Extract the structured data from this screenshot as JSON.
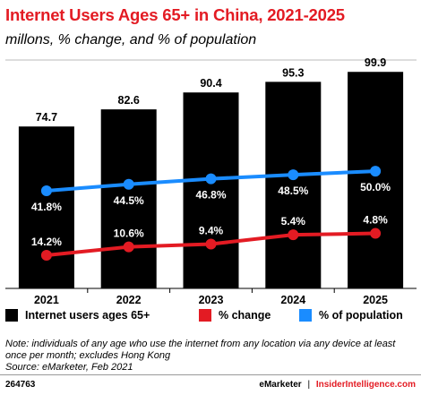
{
  "header": {
    "title": "Internet Users Ages 65+ in China, 2021-2025",
    "subtitle": "millons, % change, and % of population"
  },
  "legend": {
    "items": [
      {
        "label": "Internet users ages 65+",
        "color": "#000000"
      },
      {
        "label": "% change",
        "color": "#e31b23"
      },
      {
        "label": "% of population",
        "color": "#1a8cff"
      }
    ]
  },
  "note": "Note: individuals of any age who use the internet from any location via any device at least once per month; excludes Hong Kong",
  "source": "Source: eMarketer, Feb 2021",
  "footer": {
    "id": "264763",
    "brand1": "eMarketer",
    "separator": "|",
    "brand2": "InsiderIntelligence.com"
  },
  "chart_data": {
    "type": "bar",
    "categories": [
      "2021",
      "2022",
      "2023",
      "2024",
      "2025"
    ],
    "series": [
      {
        "name": "Internet users ages 65+",
        "type": "bar",
        "values": [
          74.7,
          82.6,
          90.4,
          95.3,
          99.9
        ],
        "labels": [
          "74.7",
          "82.6",
          "90.4",
          "95.3",
          "99.9"
        ],
        "color": "#000000"
      },
      {
        "name": "% change",
        "type": "line",
        "values": [
          14.2,
          10.6,
          9.4,
          5.4,
          4.8
        ],
        "labels": [
          "14.2%",
          "10.6%",
          "9.4%",
          "5.4%",
          "4.8%"
        ],
        "color": "#e31b23"
      },
      {
        "name": "% of population",
        "type": "line",
        "values": [
          41.8,
          44.5,
          46.8,
          48.5,
          50.0
        ],
        "labels": [
          "41.8%",
          "44.5%",
          "46.8%",
          "48.5%",
          "50.0%"
        ],
        "color": "#1a8cff"
      }
    ],
    "title": "Internet Users Ages 65+ in China, 2021-2025",
    "subtitle": "millons, % change, and % of population",
    "grid": false,
    "legend_position": "bottom"
  }
}
